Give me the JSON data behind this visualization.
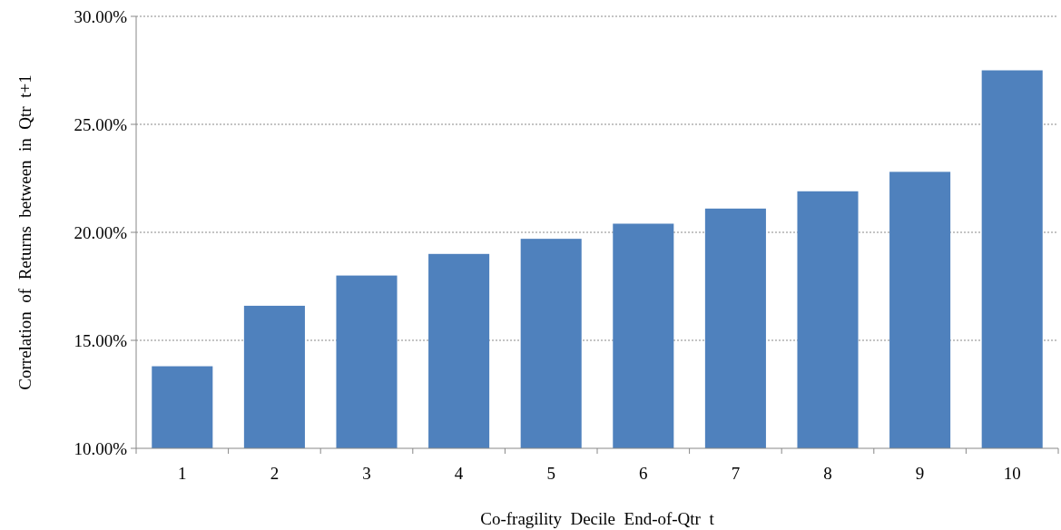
{
  "chart_data": {
    "type": "bar",
    "xlabel": "Co-fragility  Decile  End-of-Qtr  t",
    "ylabel": "Correlation  of  Returns  between  in  Qtr  t+1",
    "categories": [
      "1",
      "2",
      "3",
      "4",
      "5",
      "6",
      "7",
      "8",
      "9",
      "10"
    ],
    "values": [
      13.8,
      16.6,
      18.0,
      19.0,
      19.7,
      20.4,
      21.1,
      21.9,
      22.8,
      27.5
    ],
    "color": "#4f81bd",
    "ylim": [
      10,
      30
    ],
    "yticks": [
      {
        "value": 10,
        "label": "10.00%"
      },
      {
        "value": 15,
        "label": "15.00%"
      },
      {
        "value": 20,
        "label": "20.00%"
      },
      {
        "value": 25,
        "label": "25.00%"
      },
      {
        "value": 30,
        "label": "30.00%"
      }
    ],
    "grid": "y"
  }
}
